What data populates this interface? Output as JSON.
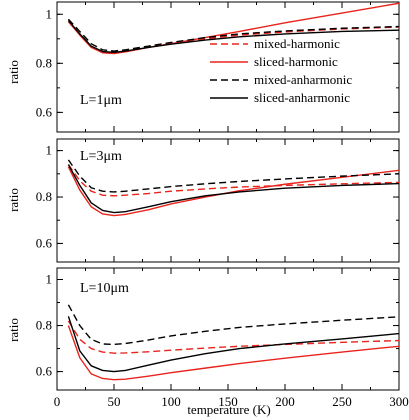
{
  "chart_data": {
    "type": "line",
    "xlabel": "temperature (K)",
    "ylabel": "ratio",
    "xlim": [
      0,
      300
    ],
    "ylim": [
      0.52,
      1.05
    ],
    "x_ticks": [
      0,
      50,
      100,
      150,
      200,
      250,
      300
    ],
    "y_ticks": [
      0.6,
      0.8,
      1.0
    ],
    "x_tick_labels": [
      "0",
      "50",
      "100",
      "150",
      "200",
      "250",
      "300"
    ],
    "y_tick_labels": [
      "0.6",
      "0.8",
      "1"
    ],
    "grid": false,
    "legend": {
      "placement": "right",
      "entries": [
        {
          "label": "mixed-harmonic",
          "color": "#e8241c",
          "style": "dashed"
        },
        {
          "label": "sliced-harmonic",
          "color": "#e8241c",
          "style": "solid"
        },
        {
          "label": "mixed-anharmonic",
          "color": "#000000",
          "style": "dashed"
        },
        {
          "label": "sliced-anharmonic",
          "color": "#000000",
          "style": "solid"
        }
      ]
    },
    "panels": [
      {
        "annotation": "L=1μm",
        "series": [
          {
            "name": "mixed-harmonic",
            "color": "#e8241c",
            "style": "dashed",
            "x": [
              10,
              20,
              30,
              40,
              50,
              60,
              80,
              100,
              130,
              160,
              200,
              250,
              300
            ],
            "y": [
              0.97,
              0.92,
              0.87,
              0.845,
              0.842,
              0.848,
              0.865,
              0.88,
              0.9,
              0.915,
              0.928,
              0.94,
              0.948
            ]
          },
          {
            "name": "sliced-harmonic",
            "color": "#e8241c",
            "style": "solid",
            "x": [
              10,
              20,
              30,
              40,
              50,
              60,
              80,
              100,
              130,
              160,
              200,
              250,
              300
            ],
            "y": [
              0.97,
              0.915,
              0.865,
              0.843,
              0.84,
              0.847,
              0.865,
              0.88,
              0.905,
              0.93,
              0.965,
              1.005,
              1.045
            ]
          },
          {
            "name": "mixed-anharmonic",
            "color": "#000000",
            "style": "dashed",
            "x": [
              10,
              20,
              30,
              40,
              50,
              60,
              80,
              100,
              130,
              160,
              200,
              250,
              300
            ],
            "y": [
              0.98,
              0.93,
              0.88,
              0.855,
              0.85,
              0.855,
              0.87,
              0.885,
              0.905,
              0.92,
              0.932,
              0.943,
              0.95
            ]
          },
          {
            "name": "sliced-anharmonic",
            "color": "#000000",
            "style": "solid",
            "x": [
              10,
              20,
              30,
              40,
              50,
              60,
              80,
              100,
              130,
              160,
              200,
              250,
              300
            ],
            "y": [
              0.975,
              0.92,
              0.87,
              0.848,
              0.845,
              0.85,
              0.865,
              0.878,
              0.895,
              0.908,
              0.92,
              0.93,
              0.935
            ]
          }
        ]
      },
      {
        "annotation": "L=3μm",
        "series": [
          {
            "name": "mixed-harmonic",
            "color": "#e8241c",
            "style": "dashed",
            "x": [
              10,
              20,
              30,
              40,
              50,
              60,
              80,
              100,
              130,
              160,
              200,
              250,
              300
            ],
            "y": [
              0.94,
              0.87,
              0.825,
              0.808,
              0.805,
              0.808,
              0.815,
              0.825,
              0.835,
              0.843,
              0.85,
              0.857,
              0.863
            ]
          },
          {
            "name": "sliced-harmonic",
            "color": "#e8241c",
            "style": "solid",
            "x": [
              10,
              20,
              30,
              40,
              50,
              60,
              80,
              100,
              130,
              160,
              200,
              250,
              300
            ],
            "y": [
              0.93,
              0.83,
              0.758,
              0.727,
              0.72,
              0.725,
              0.745,
              0.77,
              0.8,
              0.827,
              0.855,
              0.885,
              0.915
            ]
          },
          {
            "name": "mixed-anharmonic",
            "color": "#000000",
            "style": "dashed",
            "x": [
              10,
              20,
              30,
              40,
              50,
              60,
              80,
              100,
              130,
              160,
              200,
              250,
              300
            ],
            "y": [
              0.96,
              0.89,
              0.84,
              0.825,
              0.822,
              0.825,
              0.835,
              0.845,
              0.857,
              0.867,
              0.878,
              0.89,
              0.9
            ]
          },
          {
            "name": "sliced-anharmonic",
            "color": "#000000",
            "style": "solid",
            "x": [
              10,
              20,
              30,
              40,
              50,
              60,
              80,
              100,
              130,
              160,
              200,
              250,
              300
            ],
            "y": [
              0.94,
              0.85,
              0.775,
              0.742,
              0.733,
              0.737,
              0.758,
              0.78,
              0.805,
              0.822,
              0.838,
              0.85,
              0.858
            ]
          }
        ]
      },
      {
        "annotation": "L=10μm",
        "series": [
          {
            "name": "mixed-harmonic",
            "color": "#e8241c",
            "style": "dashed",
            "x": [
              10,
              20,
              30,
              40,
              50,
              60,
              80,
              100,
              130,
              160,
              200,
              250,
              300
            ],
            "y": [
              0.82,
              0.74,
              0.7,
              0.685,
              0.68,
              0.681,
              0.686,
              0.693,
              0.702,
              0.71,
              0.718,
              0.727,
              0.735
            ]
          },
          {
            "name": "sliced-harmonic",
            "color": "#e8241c",
            "style": "solid",
            "x": [
              10,
              20,
              30,
              40,
              50,
              60,
              80,
              100,
              130,
              160,
              200,
              250,
              300
            ],
            "y": [
              0.8,
              0.66,
              0.59,
              0.57,
              0.565,
              0.567,
              0.58,
              0.595,
              0.615,
              0.635,
              0.658,
              0.685,
              0.71
            ]
          },
          {
            "name": "mixed-anharmonic",
            "color": "#000000",
            "style": "dashed",
            "x": [
              10,
              20,
              30,
              40,
              50,
              60,
              80,
              100,
              130,
              160,
              200,
              250,
              300
            ],
            "y": [
              0.89,
              0.8,
              0.74,
              0.72,
              0.718,
              0.722,
              0.737,
              0.755,
              0.775,
              0.792,
              0.807,
              0.823,
              0.838
            ]
          },
          {
            "name": "sliced-anharmonic",
            "color": "#000000",
            "style": "solid",
            "x": [
              10,
              20,
              30,
              40,
              50,
              60,
              80,
              100,
              130,
              160,
              200,
              250,
              300
            ],
            "y": [
              0.84,
              0.69,
              0.625,
              0.605,
              0.6,
              0.605,
              0.628,
              0.65,
              0.678,
              0.7,
              0.72,
              0.742,
              0.765
            ]
          }
        ]
      }
    ]
  }
}
